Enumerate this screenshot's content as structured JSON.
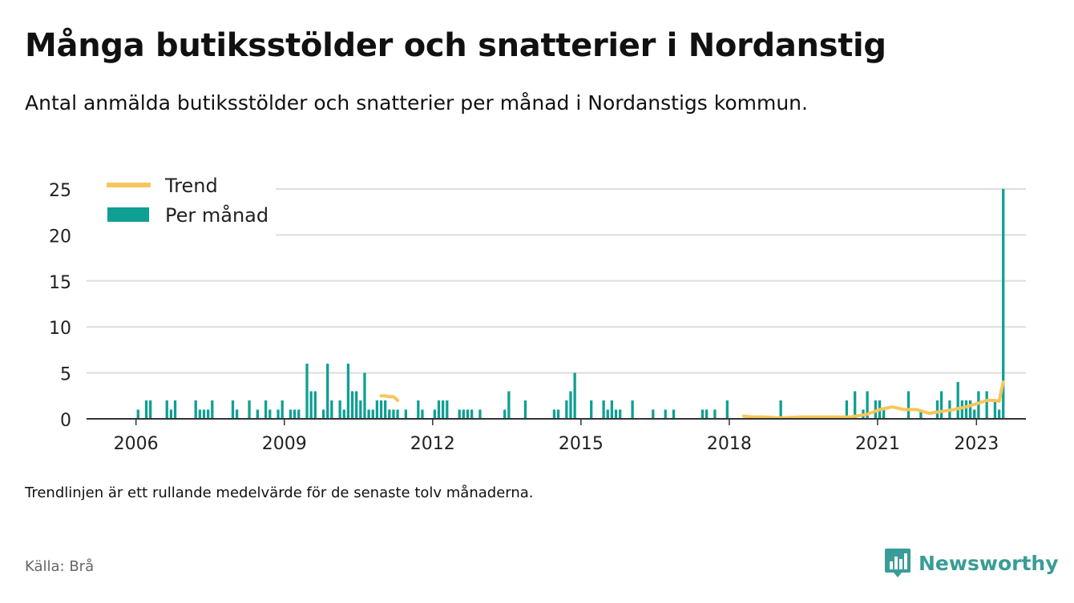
{
  "title": "Många butiksstölder och snatterier i Nordanstig",
  "subtitle": "Antal anmälda butiksstölder och snatterier per månad i Nordanstigs kommun.",
  "note": "Trendlinjen är ett rullande medelvärde för de senaste tolv månaderna.",
  "source": "Källa: Brå",
  "brand": {
    "name": "Newsworthy",
    "icon": "newsworthy-logo-icon"
  },
  "colors": {
    "bar": "#0f9f94",
    "trend": "#f7c65b",
    "grid": "#dddddd",
    "axis": "#333333",
    "brand": "#3a9c97"
  },
  "chart_data": {
    "type": "bar",
    "title": "",
    "xlabel": "",
    "ylabel": "",
    "ylim": [
      0,
      25
    ],
    "yticks": [
      0,
      5,
      10,
      15,
      20,
      25
    ],
    "xlim": [
      "2005-01",
      "2023-12"
    ],
    "xticks": [
      "2006",
      "2009",
      "2012",
      "2015",
      "2018",
      "2021",
      "2023"
    ],
    "grid": true,
    "legend": "top-left",
    "series": [
      {
        "name": "Per månad",
        "type": "bar",
        "points": [
          [
            "2006-01",
            1
          ],
          [
            "2006-03",
            2
          ],
          [
            "2006-04",
            2
          ],
          [
            "2006-08",
            2
          ],
          [
            "2006-09",
            1
          ],
          [
            "2006-10",
            2
          ],
          [
            "2007-03",
            2
          ],
          [
            "2007-04",
            1
          ],
          [
            "2007-05",
            1
          ],
          [
            "2007-06",
            1
          ],
          [
            "2007-07",
            2
          ],
          [
            "2007-12",
            2
          ],
          [
            "2008-01",
            1
          ],
          [
            "2008-04",
            2
          ],
          [
            "2008-06",
            1
          ],
          [
            "2008-08",
            2
          ],
          [
            "2008-09",
            1
          ],
          [
            "2008-11",
            1
          ],
          [
            "2008-12",
            2
          ],
          [
            "2009-02",
            1
          ],
          [
            "2009-03",
            1
          ],
          [
            "2009-04",
            1
          ],
          [
            "2009-06",
            6
          ],
          [
            "2009-07",
            3
          ],
          [
            "2009-08",
            3
          ],
          [
            "2009-10",
            1
          ],
          [
            "2009-11",
            6
          ],
          [
            "2009-12",
            2
          ],
          [
            "2010-02",
            2
          ],
          [
            "2010-03",
            1
          ],
          [
            "2010-04",
            6
          ],
          [
            "2010-05",
            3
          ],
          [
            "2010-06",
            3
          ],
          [
            "2010-07",
            2
          ],
          [
            "2010-08",
            5
          ],
          [
            "2010-09",
            1
          ],
          [
            "2010-10",
            1
          ],
          [
            "2010-11",
            2
          ],
          [
            "2010-12",
            2
          ],
          [
            "2011-01",
            2
          ],
          [
            "2011-02",
            1
          ],
          [
            "2011-03",
            1
          ],
          [
            "2011-04",
            1
          ],
          [
            "2011-06",
            1
          ],
          [
            "2011-09",
            2
          ],
          [
            "2011-10",
            1
          ],
          [
            "2012-01",
            1
          ],
          [
            "2012-02",
            2
          ],
          [
            "2012-03",
            2
          ],
          [
            "2012-04",
            2
          ],
          [
            "2012-07",
            1
          ],
          [
            "2012-08",
            1
          ],
          [
            "2012-09",
            1
          ],
          [
            "2012-10",
            1
          ],
          [
            "2012-12",
            1
          ],
          [
            "2013-06",
            1
          ],
          [
            "2013-07",
            3
          ],
          [
            "2013-11",
            2
          ],
          [
            "2014-06",
            1
          ],
          [
            "2014-07",
            1
          ],
          [
            "2014-09",
            2
          ],
          [
            "2014-10",
            3
          ],
          [
            "2014-11",
            5
          ],
          [
            "2015-03",
            2
          ],
          [
            "2015-06",
            2
          ],
          [
            "2015-07",
            1
          ],
          [
            "2015-08",
            2
          ],
          [
            "2015-09",
            1
          ],
          [
            "2015-10",
            1
          ],
          [
            "2016-01",
            2
          ],
          [
            "2016-06",
            1
          ],
          [
            "2016-09",
            1
          ],
          [
            "2016-11",
            1
          ],
          [
            "2017-06",
            1
          ],
          [
            "2017-07",
            1
          ],
          [
            "2017-09",
            1
          ],
          [
            "2017-12",
            2
          ],
          [
            "2019-01",
            2
          ],
          [
            "2020-05",
            2
          ],
          [
            "2020-07",
            3
          ],
          [
            "2020-09",
            1
          ],
          [
            "2020-10",
            3
          ],
          [
            "2020-12",
            2
          ],
          [
            "2021-01",
            2
          ],
          [
            "2021-02",
            1
          ],
          [
            "2021-08",
            3
          ],
          [
            "2021-11",
            1
          ],
          [
            "2022-03",
            2
          ],
          [
            "2022-04",
            3
          ],
          [
            "2022-06",
            2
          ],
          [
            "2022-08",
            4
          ],
          [
            "2022-09",
            2
          ],
          [
            "2022-10",
            2
          ],
          [
            "2022-11",
            2
          ],
          [
            "2022-12",
            1
          ],
          [
            "2023-01",
            3
          ],
          [
            "2023-03",
            3
          ],
          [
            "2023-05",
            2
          ],
          [
            "2023-06",
            1
          ],
          [
            "2023-07",
            25
          ]
        ]
      },
      {
        "name": "Trend",
        "type": "line",
        "segments": [
          [
            [
              "2010-12",
              2.5
            ],
            [
              "2011-01",
              2.5
            ],
            [
              "2011-02",
              2.4
            ],
            [
              "2011-03",
              2.4
            ],
            [
              "2011-04",
              2.0
            ]
          ],
          [
            [
              "2018-04",
              0.3
            ],
            [
              "2018-06",
              0.2
            ],
            [
              "2018-09",
              0.2
            ],
            [
              "2019-01",
              0.1
            ],
            [
              "2019-06",
              0.2
            ],
            [
              "2020-01",
              0.2
            ],
            [
              "2020-06",
              0.2
            ],
            [
              "2020-10",
              0.5
            ],
            [
              "2021-01",
              1.0
            ],
            [
              "2021-04",
              1.3
            ],
            [
              "2021-07",
              1.0
            ],
            [
              "2021-10",
              1.0
            ],
            [
              "2022-01",
              0.6
            ],
            [
              "2022-04",
              0.8
            ],
            [
              "2022-07",
              1.0
            ],
            [
              "2022-10",
              1.3
            ],
            [
              "2023-01",
              1.7
            ],
            [
              "2023-03",
              2.0
            ],
            [
              "2023-05",
              2.0
            ],
            [
              "2023-06",
              1.9
            ],
            [
              "2023-07",
              4.0
            ]
          ]
        ]
      }
    ]
  }
}
